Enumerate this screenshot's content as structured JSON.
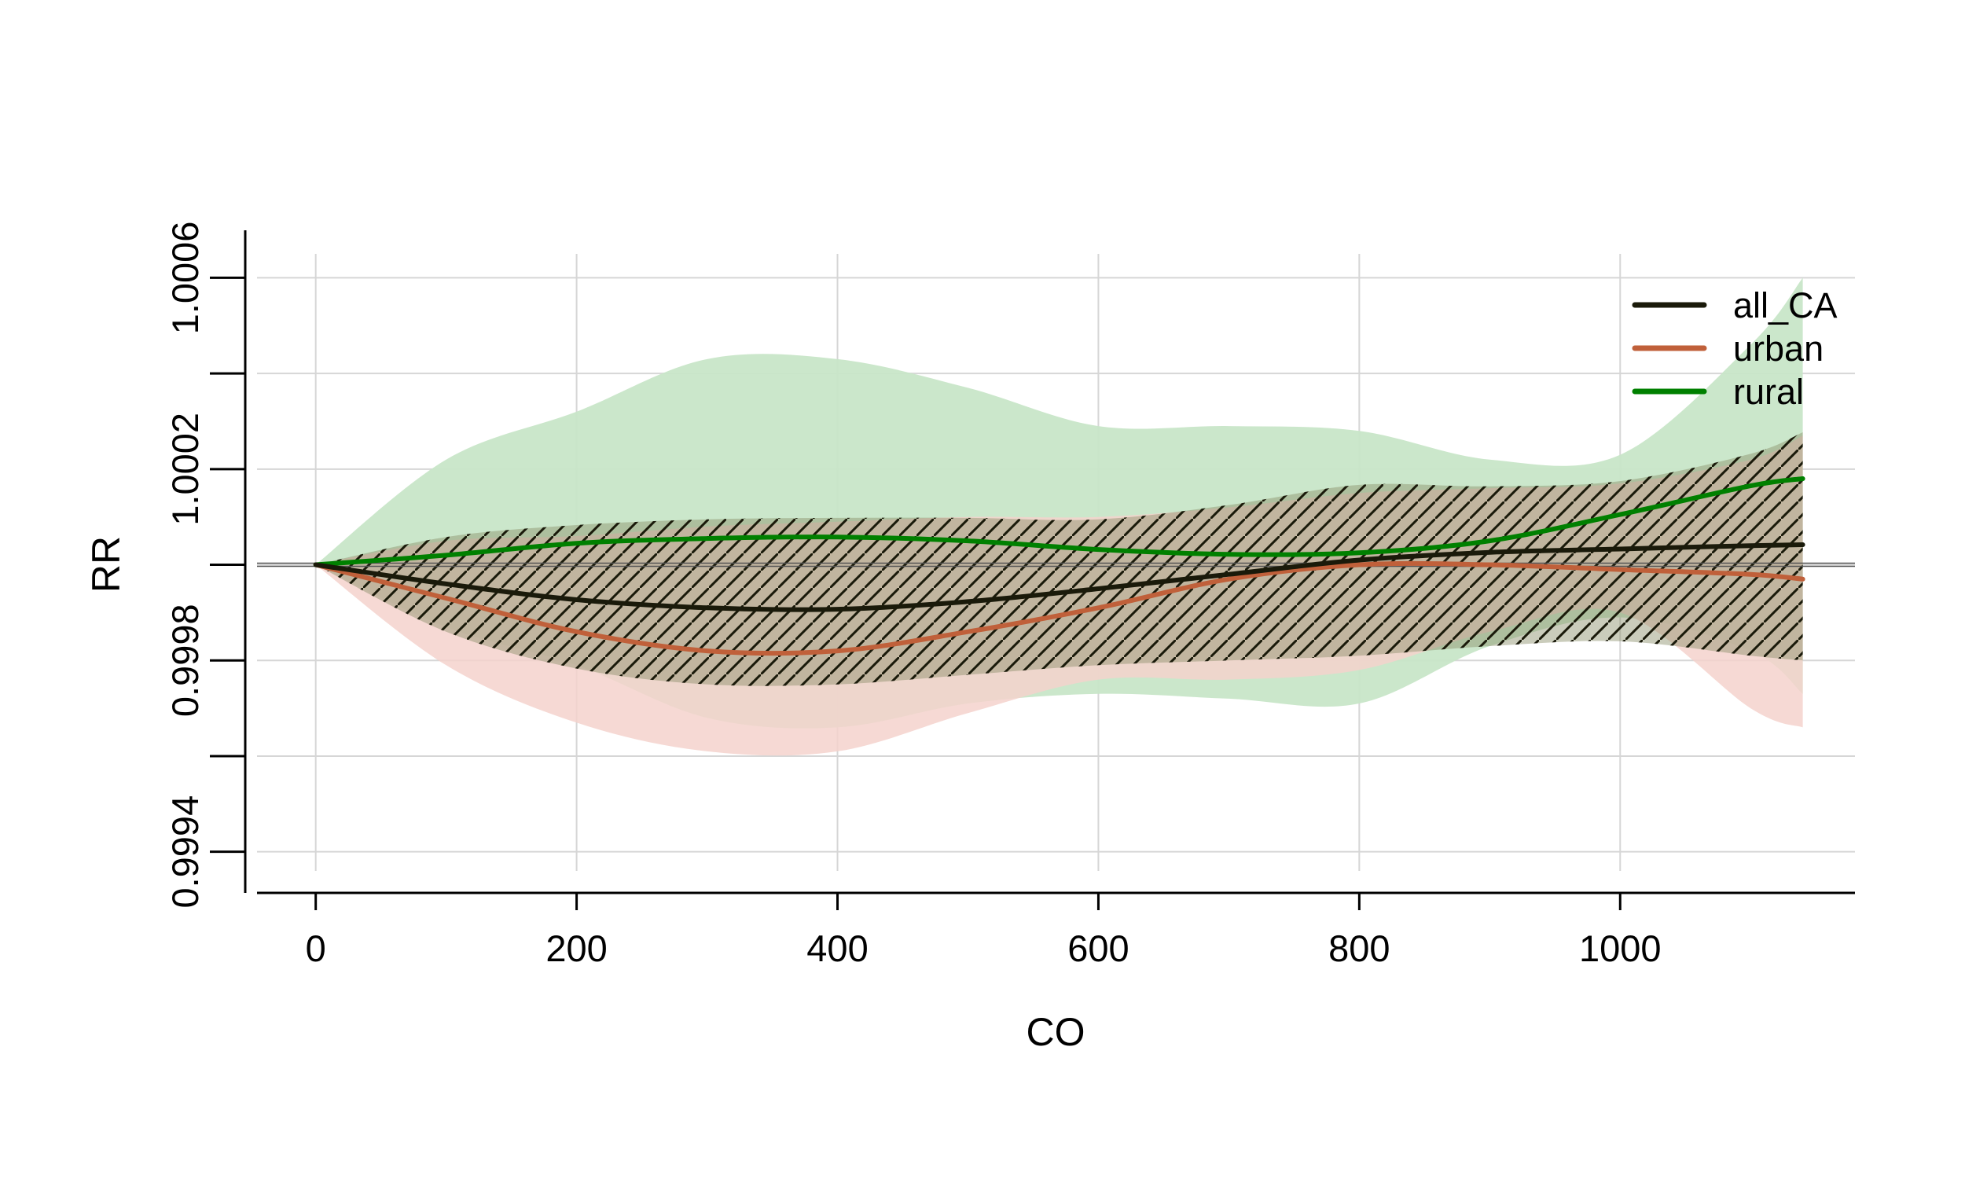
{
  "chart_data": {
    "type": "line",
    "xlabel": "CO",
    "ylabel": "RR",
    "xlim": [
      -45,
      1180
    ],
    "ylim": [
      0.99936,
      1.00065
    ],
    "grid": true,
    "legend_position": "top-right",
    "reference_line": 1.0,
    "x_ticks": [
      0,
      200,
      400,
      600,
      800,
      1000
    ],
    "x_tick_labels": [
      "0",
      "200",
      "400",
      "600",
      "800",
      "1000"
    ],
    "y_ticks": [
      0.9994,
      0.9996,
      0.9998,
      1.0,
      1.0002,
      1.0004,
      1.0006
    ],
    "y_tick_labels": [
      "0.9994",
      "",
      "0.9998",
      "",
      "1.0002",
      "",
      "1.0006"
    ],
    "x": [
      0,
      100,
      200,
      300,
      400,
      500,
      600,
      700,
      800,
      900,
      1000,
      1100,
      1140
    ],
    "series": [
      {
        "name": "all_CA",
        "color": "#1a1a0a",
        "ci_style": "hatched",
        "values": [
          1.0,
          0.99996,
          0.999927,
          0.99991,
          0.999907,
          0.999923,
          0.99995,
          0.99998,
          1.00001,
          1.000026,
          1.000033,
          1.00004,
          1.000042
        ],
        "lower": [
          1.0,
          0.99986,
          0.999783,
          0.99975,
          0.99975,
          0.99977,
          0.99979,
          0.9998,
          0.99981,
          0.99983,
          0.99984,
          0.99981,
          0.9998
        ],
        "upper": [
          1.0,
          1.000058,
          1.000083,
          1.000095,
          1.000098,
          1.000098,
          1.000095,
          1.000125,
          1.000167,
          1.000164,
          1.000175,
          1.000232,
          1.000277
        ]
      },
      {
        "name": "urban",
        "color": "#c0603a",
        "band_color": "#f4d2cc",
        "values": [
          1.0,
          0.99993,
          0.99986,
          0.99982,
          0.99982,
          0.99986,
          0.99991,
          0.99997,
          1.0,
          1.0,
          0.99999,
          0.99998,
          0.99997
        ],
        "lower": [
          1.0,
          0.99979,
          0.99967,
          0.99961,
          0.99961,
          0.99969,
          0.99976,
          0.99976,
          0.99978,
          0.99986,
          0.9999,
          0.9997,
          0.99966
        ],
        "upper": [
          1.0,
          1.00005,
          1.00006,
          1.00008,
          1.00009,
          1.0001,
          1.0001,
          1.00012,
          1.00015,
          1.00016,
          1.00017,
          1.00022,
          1.00027
        ]
      },
      {
        "name": "rural",
        "color": "#008000",
        "band_color": "#c8e6c8",
        "values": [
          1.0,
          1.00002,
          1.000045,
          1.000055,
          1.000058,
          1.00005,
          1.000032,
          1.000022,
          1.000025,
          1.00005,
          1.000105,
          1.000165,
          1.00018
        ],
        "lower": [
          1.0,
          0.99987,
          0.99979,
          0.99968,
          0.99966,
          0.99971,
          0.99973,
          0.99972,
          0.99971,
          0.99983,
          0.99989,
          0.99982,
          0.99973
        ],
        "upper": [
          1.0,
          1.00022,
          1.00032,
          1.00043,
          1.00043,
          1.00037,
          1.00029,
          1.00029,
          1.00028,
          1.00022,
          1.00023,
          1.00046,
          1.0006
        ]
      }
    ]
  }
}
